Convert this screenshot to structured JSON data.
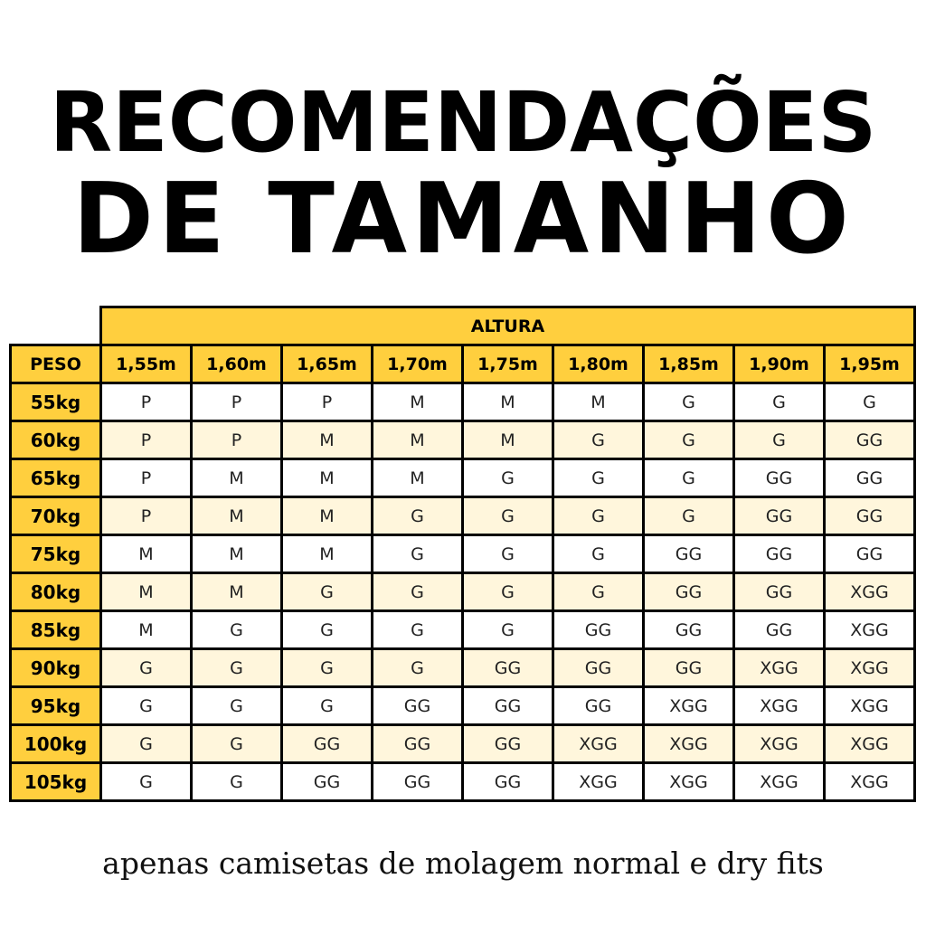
{
  "title": {
    "line1": "RECOMENDAÇÕES",
    "line2": "DE TAMANHO"
  },
  "table": {
    "altura_label": "ALTURA",
    "peso_label": "PESO",
    "heights": [
      "1,55m",
      "1,60m",
      "1,65m",
      "1,70m",
      "1,75m",
      "1,80m",
      "1,85m",
      "1,90m",
      "1,95m"
    ],
    "rows": [
      {
        "weight": "55kg",
        "sizes": [
          "P",
          "P",
          "P",
          "M",
          "M",
          "M",
          "G",
          "G",
          "G"
        ]
      },
      {
        "weight": "60kg",
        "sizes": [
          "P",
          "P",
          "M",
          "M",
          "M",
          "G",
          "G",
          "G",
          "GG"
        ]
      },
      {
        "weight": "65kg",
        "sizes": [
          "P",
          "M",
          "M",
          "M",
          "G",
          "G",
          "G",
          "GG",
          "GG"
        ]
      },
      {
        "weight": "70kg",
        "sizes": [
          "P",
          "M",
          "M",
          "G",
          "G",
          "G",
          "G",
          "GG",
          "GG"
        ]
      },
      {
        "weight": "75kg",
        "sizes": [
          "M",
          "M",
          "M",
          "G",
          "G",
          "G",
          "GG",
          "GG",
          "GG"
        ]
      },
      {
        "weight": "80kg",
        "sizes": [
          "M",
          "M",
          "G",
          "G",
          "G",
          "G",
          "GG",
          "GG",
          "XGG"
        ]
      },
      {
        "weight": "85kg",
        "sizes": [
          "M",
          "G",
          "G",
          "G",
          "G",
          "GG",
          "GG",
          "GG",
          "XGG"
        ]
      },
      {
        "weight": "90kg",
        "sizes": [
          "G",
          "G",
          "G",
          "G",
          "GG",
          "GG",
          "GG",
          "XGG",
          "XGG"
        ]
      },
      {
        "weight": "95kg",
        "sizes": [
          "G",
          "G",
          "G",
          "GG",
          "GG",
          "GG",
          "XGG",
          "XGG",
          "XGG"
        ]
      },
      {
        "weight": "100kg",
        "sizes": [
          "G",
          "G",
          "GG",
          "GG",
          "GG",
          "XGG",
          "XGG",
          "XGG",
          "XGG"
        ]
      },
      {
        "weight": "105kg",
        "sizes": [
          "G",
          "G",
          "GG",
          "GG",
          "GG",
          "XGG",
          "XGG",
          "XGG",
          "XGG"
        ]
      }
    ]
  },
  "footer": {
    "note": "apenas camisetas de molagem normal e dry fits"
  },
  "colors": {
    "header_yellow": "#ffcf3e",
    "stripe_cream": "#fff6dc",
    "border": "#000000"
  }
}
